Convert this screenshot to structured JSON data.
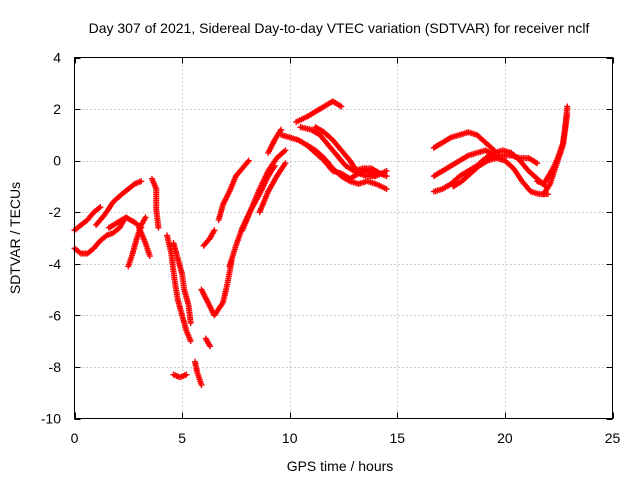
{
  "chart_data": {
    "type": "scatter",
    "title": "Day 307 of 2021, Sidereal Day-to-day VTEC variation (SDTVAR) for receiver nclf",
    "xlabel": "GPS time / hours",
    "ylabel": "SDTVAR / TECUs",
    "xlim": [
      0,
      25
    ],
    "ylim": [
      -10,
      4
    ],
    "xticks": [
      "0",
      "5",
      "10",
      "15",
      "20",
      "25"
    ],
    "yticks": [
      "4",
      "2",
      "0",
      "-2",
      "-4",
      "-6",
      "-8",
      "-10"
    ],
    "grid": true,
    "marker": "+",
    "color": "#ff0000",
    "series": [
      {
        "name": "nclf",
        "tracks": [
          [
            [
              0.0,
              -2.7
            ],
            [
              0.3,
              -2.5
            ],
            [
              0.6,
              -2.3
            ],
            [
              0.9,
              -2.0
            ],
            [
              1.2,
              -1.8
            ]
          ],
          [
            [
              0.0,
              -3.4
            ],
            [
              0.3,
              -3.6
            ],
            [
              0.6,
              -3.6
            ],
            [
              0.9,
              -3.4
            ],
            [
              1.2,
              -3.1
            ],
            [
              1.5,
              -2.9
            ],
            [
              1.8,
              -2.8
            ],
            [
              2.1,
              -2.6
            ],
            [
              2.3,
              -2.3
            ]
          ],
          [
            [
              1.0,
              -2.5
            ],
            [
              1.4,
              -2.1
            ],
            [
              1.8,
              -1.6
            ],
            [
              2.2,
              -1.3
            ],
            [
              2.5,
              -1.1
            ],
            [
              2.8,
              -0.9
            ],
            [
              3.1,
              -0.8
            ]
          ],
          [
            [
              1.6,
              -2.6
            ],
            [
              2.0,
              -2.4
            ],
            [
              2.4,
              -2.2
            ],
            [
              2.8,
              -2.4
            ],
            [
              3.1,
              -2.6
            ]
          ],
          [
            [
              2.5,
              -4.1
            ],
            [
              2.7,
              -3.6
            ],
            [
              2.9,
              -3.0
            ],
            [
              3.1,
              -2.5
            ],
            [
              3.3,
              -2.2
            ]
          ],
          [
            [
              3.0,
              -2.6
            ],
            [
              3.3,
              -3.2
            ],
            [
              3.5,
              -3.7
            ]
          ],
          [
            [
              3.6,
              -0.7
            ],
            [
              3.8,
              -1.1
            ],
            [
              3.8,
              -1.9
            ],
            [
              3.9,
              -2.6
            ]
          ],
          [
            [
              4.3,
              -2.9
            ],
            [
              4.5,
              -3.6
            ],
            [
              4.6,
              -4.3
            ],
            [
              4.7,
              -4.9
            ],
            [
              4.8,
              -5.4
            ],
            [
              5.0,
              -6.0
            ],
            [
              5.2,
              -6.6
            ],
            [
              5.4,
              -7.0
            ]
          ],
          [
            [
              4.6,
              -3.2
            ],
            [
              4.8,
              -3.8
            ],
            [
              5.0,
              -4.4
            ],
            [
              5.1,
              -5.0
            ],
            [
              5.3,
              -5.6
            ],
            [
              5.4,
              -6.3
            ]
          ],
          [
            [
              4.6,
              -8.3
            ],
            [
              4.9,
              -8.4
            ],
            [
              5.2,
              -8.3
            ]
          ],
          [
            [
              5.6,
              -7.8
            ],
            [
              5.7,
              -8.2
            ],
            [
              5.9,
              -8.7
            ]
          ],
          [
            [
              6.1,
              -6.9
            ],
            [
              6.3,
              -7.2
            ]
          ],
          [
            [
              5.9,
              -5.0
            ],
            [
              6.2,
              -5.5
            ],
            [
              6.5,
              -6.0
            ],
            [
              6.9,
              -5.5
            ],
            [
              7.1,
              -4.8
            ],
            [
              7.3,
              -3.9
            ]
          ],
          [
            [
              6.0,
              -3.3
            ],
            [
              6.3,
              -3.0
            ],
            [
              6.5,
              -2.7
            ]
          ],
          [
            [
              6.7,
              -2.3
            ],
            [
              6.9,
              -1.7
            ],
            [
              7.2,
              -1.2
            ],
            [
              7.5,
              -0.6
            ],
            [
              7.8,
              -0.3
            ],
            [
              8.1,
              0.0
            ]
          ],
          [
            [
              7.2,
              -4.1
            ],
            [
              7.5,
              -3.3
            ],
            [
              7.8,
              -2.6
            ],
            [
              8.2,
              -1.9
            ],
            [
              8.6,
              -1.3
            ],
            [
              9.0,
              -0.6
            ],
            [
              9.3,
              -0.2
            ]
          ],
          [
            [
              7.8,
              -2.7
            ],
            [
              8.2,
              -1.9
            ],
            [
              8.6,
              -1.1
            ],
            [
              9.0,
              -0.4
            ],
            [
              9.4,
              0.1
            ],
            [
              9.8,
              0.4
            ]
          ],
          [
            [
              8.6,
              -2.0
            ],
            [
              9.0,
              -1.2
            ],
            [
              9.4,
              -0.6
            ],
            [
              9.8,
              -0.1
            ]
          ],
          [
            [
              9.0,
              0.3
            ],
            [
              9.3,
              0.8
            ],
            [
              9.6,
              1.2
            ]
          ],
          [
            [
              9.6,
              1.0
            ],
            [
              10.0,
              0.9
            ],
            [
              10.4,
              0.8
            ],
            [
              10.8,
              0.6
            ],
            [
              11.2,
              0.3
            ],
            [
              11.6,
              0.0
            ],
            [
              12.0,
              -0.4
            ],
            [
              12.4,
              -0.5
            ],
            [
              12.8,
              -0.7
            ],
            [
              13.2,
              -0.5
            ],
            [
              13.6,
              -0.4
            ],
            [
              14.0,
              -0.6
            ]
          ],
          [
            [
              10.3,
              1.5
            ],
            [
              10.8,
              1.7
            ],
            [
              11.2,
              1.9
            ],
            [
              11.6,
              2.1
            ],
            [
              12.0,
              2.3
            ],
            [
              12.4,
              2.1
            ]
          ],
          [
            [
              10.5,
              1.3
            ],
            [
              11.0,
              1.2
            ],
            [
              11.4,
              1.0
            ],
            [
              11.8,
              0.6
            ],
            [
              12.2,
              0.2
            ],
            [
              12.6,
              -0.2
            ],
            [
              13.0,
              -0.4
            ],
            [
              13.4,
              -0.3
            ],
            [
              13.8,
              -0.3
            ],
            [
              14.2,
              -0.5
            ],
            [
              14.5,
              -0.6
            ]
          ],
          [
            [
              10.8,
              0.6
            ],
            [
              11.2,
              0.4
            ],
            [
              11.6,
              0.1
            ],
            [
              12.0,
              -0.3
            ],
            [
              12.4,
              -0.6
            ],
            [
              12.8,
              -0.8
            ],
            [
              13.2,
              -0.9
            ],
            [
              13.6,
              -0.8
            ],
            [
              14.0,
              -0.9
            ],
            [
              14.5,
              -1.1
            ]
          ],
          [
            [
              11.2,
              1.3
            ],
            [
              11.6,
              1.1
            ],
            [
              12.0,
              0.8
            ],
            [
              12.4,
              0.4
            ],
            [
              12.8,
              0.0
            ],
            [
              13.2,
              -0.5
            ],
            [
              13.6,
              -0.6
            ],
            [
              14.0,
              -0.6
            ],
            [
              14.5,
              -0.4
            ]
          ],
          [
            [
              16.7,
              0.5
            ],
            [
              17.1,
              0.7
            ],
            [
              17.5,
              0.9
            ],
            [
              17.9,
              1.0
            ],
            [
              18.3,
              1.1
            ],
            [
              18.7,
              1.0
            ],
            [
              19.1,
              0.7
            ],
            [
              19.5,
              0.4
            ]
          ],
          [
            [
              16.7,
              -0.6
            ],
            [
              17.1,
              -0.4
            ],
            [
              17.5,
              -0.2
            ],
            [
              17.9,
              0.0
            ],
            [
              18.3,
              0.2
            ],
            [
              18.7,
              0.3
            ],
            [
              19.1,
              0.4
            ],
            [
              19.5,
              0.2
            ],
            [
              19.9,
              0.2
            ],
            [
              20.3,
              0.2
            ],
            [
              20.7,
              0.1
            ],
            [
              21.1,
              0.1
            ],
            [
              21.5,
              -0.1
            ]
          ],
          [
            [
              16.7,
              -1.2
            ],
            [
              17.1,
              -1.1
            ],
            [
              17.5,
              -0.9
            ],
            [
              17.9,
              -0.6
            ],
            [
              18.3,
              -0.4
            ],
            [
              18.7,
              -0.2
            ],
            [
              19.1,
              0.1
            ],
            [
              19.5,
              0.3
            ],
            [
              19.9,
              0.4
            ],
            [
              20.3,
              0.3
            ],
            [
              20.7,
              0.0
            ],
            [
              21.1,
              -0.4
            ],
            [
              21.5,
              -0.7
            ],
            [
              21.9,
              -1.0
            ]
          ],
          [
            [
              17.6,
              -1.0
            ],
            [
              18.0,
              -0.8
            ],
            [
              18.4,
              -0.5
            ],
            [
              18.8,
              -0.2
            ],
            [
              19.2,
              0.0
            ],
            [
              19.6,
              0.1
            ],
            [
              20.0,
              0.0
            ],
            [
              20.4,
              -0.3
            ],
            [
              20.8,
              -0.8
            ],
            [
              21.2,
              -1.2
            ],
            [
              21.6,
              -1.3
            ],
            [
              22.0,
              -1.3
            ]
          ],
          [
            [
              21.5,
              -0.8
            ],
            [
              21.8,
              -0.9
            ],
            [
              22.1,
              -0.5
            ],
            [
              22.3,
              -0.2
            ],
            [
              22.5,
              0.2
            ],
            [
              22.7,
              0.7
            ],
            [
              22.8,
              1.3
            ],
            [
              22.9,
              2.1
            ]
          ],
          [
            [
              21.8,
              -1.3
            ],
            [
              22.1,
              -0.9
            ],
            [
              22.3,
              -0.4
            ],
            [
              22.5,
              0.1
            ],
            [
              22.7,
              0.6
            ],
            [
              22.8,
              1.2
            ],
            [
              22.9,
              1.8
            ]
          ]
        ]
      }
    ]
  }
}
